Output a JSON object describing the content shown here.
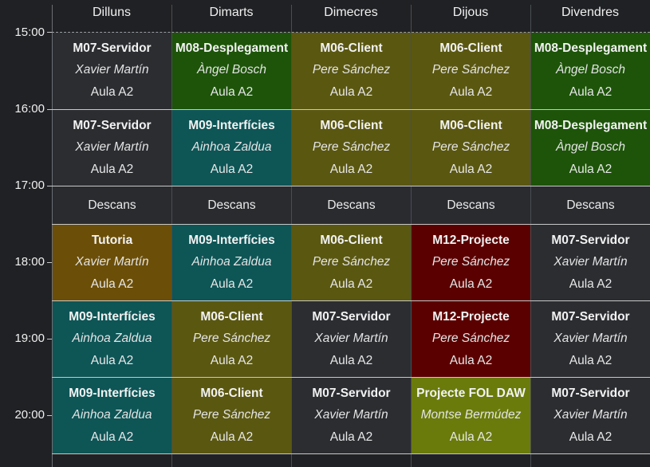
{
  "days": [
    "Dilluns",
    "Dimarts",
    "Dimecres",
    "Dijous",
    "Divendres"
  ],
  "times": [
    "15:00",
    "16:00",
    "17:00",
    "18:00",
    "19:00",
    "20:00"
  ],
  "colors": {
    "background": "#202124",
    "M07": "#2b2d31",
    "M08": "#1d5409",
    "M06": "#5a5711",
    "M09": "#0e5556",
    "M12": "#5a0000",
    "Tutoria": "#6b4e08",
    "FOL": "#6a7b0b",
    "break": "#292b2f"
  },
  "rows": [
    {
      "type": "class",
      "cells": [
        {
          "module": "M07-Servidor",
          "teacher": "Xavier Martín",
          "room": "Aula A2",
          "color": "#2b2d31"
        },
        {
          "module": "M08-Desplegament",
          "teacher": "Àngel Bosch",
          "room": "Aula A2",
          "color": "#1d5409"
        },
        {
          "module": "M06-Client",
          "teacher": "Pere Sánchez",
          "room": "Aula A2",
          "color": "#5a5711"
        },
        {
          "module": "M06-Client",
          "teacher": "Pere Sánchez",
          "room": "Aula A2",
          "color": "#5a5711"
        },
        {
          "module": "M08-Desplegament",
          "teacher": "Àngel Bosch",
          "room": "Aula A2",
          "color": "#1d5409"
        }
      ]
    },
    {
      "type": "class",
      "cells": [
        {
          "module": "M07-Servidor",
          "teacher": "Xavier Martín",
          "room": "Aula A2",
          "color": "#2b2d31"
        },
        {
          "module": "M09-Interfícies",
          "teacher": "Ainhoa Zaldua",
          "room": "Aula A2",
          "color": "#0e5556"
        },
        {
          "module": "M06-Client",
          "teacher": "Pere Sánchez",
          "room": "Aula A2",
          "color": "#5a5711"
        },
        {
          "module": "M06-Client",
          "teacher": "Pere Sánchez",
          "room": "Aula A2",
          "color": "#5a5711"
        },
        {
          "module": "M08-Desplegament",
          "teacher": "Àngel Bosch",
          "room": "Aula A2",
          "color": "#1d5409"
        }
      ]
    },
    {
      "type": "break",
      "cells": [
        {
          "label": "Descans"
        },
        {
          "label": "Descans"
        },
        {
          "label": "Descans"
        },
        {
          "label": "Descans"
        },
        {
          "label": "Descans"
        }
      ]
    },
    {
      "type": "class",
      "cells": [
        {
          "module": "Tutoria",
          "teacher": "Xavier Martín",
          "room": "Aula A2",
          "color": "#6b4e08"
        },
        {
          "module": "M09-Interfícies",
          "teacher": "Ainhoa Zaldua",
          "room": "Aula A2",
          "color": "#0e5556"
        },
        {
          "module": "M06-Client",
          "teacher": "Pere Sánchez",
          "room": "Aula A2",
          "color": "#5a5711"
        },
        {
          "module": "M12-Projecte",
          "teacher": "Pere Sánchez",
          "room": "Aula A2",
          "color": "#5a0000"
        },
        {
          "module": "M07-Servidor",
          "teacher": "Xavier Martín",
          "room": "Aula A2",
          "color": "#2b2d31"
        }
      ]
    },
    {
      "type": "class",
      "cells": [
        {
          "module": "M09-Interfícies",
          "teacher": "Ainhoa Zaldua",
          "room": "Aula A2",
          "color": "#0e5556"
        },
        {
          "module": "M06-Client",
          "teacher": "Pere Sánchez",
          "room": "Aula A2",
          "color": "#5a5711"
        },
        {
          "module": "M07-Servidor",
          "teacher": "Xavier Martín",
          "room": "Aula A2",
          "color": "#2b2d31"
        },
        {
          "module": "M12-Projecte",
          "teacher": "Pere Sánchez",
          "room": "Aula A2",
          "color": "#5a0000"
        },
        {
          "module": "M07-Servidor",
          "teacher": "Xavier Martín",
          "room": "Aula A2",
          "color": "#2b2d31"
        }
      ]
    },
    {
      "type": "class",
      "cells": [
        {
          "module": "M09-Interfícies",
          "teacher": "Ainhoa Zaldua",
          "room": "Aula A2",
          "color": "#0e5556"
        },
        {
          "module": "M06-Client",
          "teacher": "Pere Sánchez",
          "room": "Aula A2",
          "color": "#5a5711"
        },
        {
          "module": "M07-Servidor",
          "teacher": "Xavier Martín",
          "room": "Aula A2",
          "color": "#2b2d31"
        },
        {
          "module": "Projecte FOL DAW",
          "teacher": "Montse Bermúdez",
          "room": "Aula A2",
          "color": "#6a7b0b"
        },
        {
          "module": "M07-Servidor",
          "teacher": "Xavier Martín",
          "room": "Aula A2",
          "color": "#2b2d31"
        }
      ]
    }
  ]
}
